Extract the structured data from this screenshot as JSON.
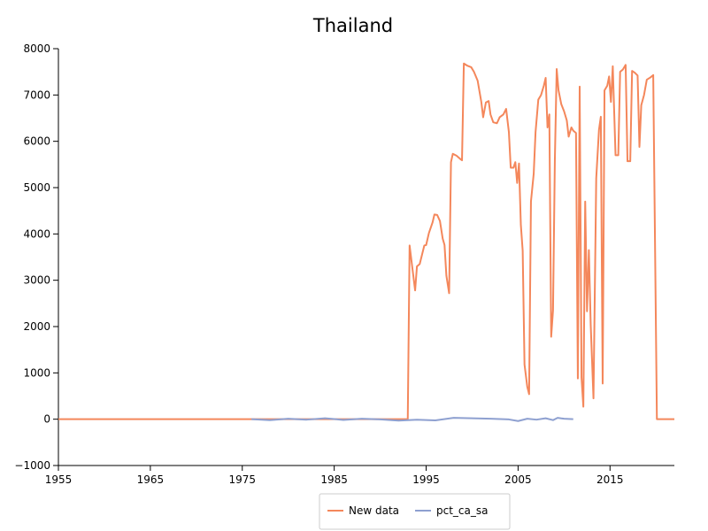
{
  "chart_data": {
    "type": "line",
    "title": "Thailand",
    "xlabel": "",
    "ylabel": "",
    "xlim": [
      1955,
      2022
    ],
    "ylim": [
      -1000,
      8000
    ],
    "x_ticks": [
      "1955",
      "1965",
      "1975",
      "1985",
      "1995",
      "2005",
      "2015"
    ],
    "y_ticks": [
      "−1000",
      "0",
      "1000",
      "2000",
      "3000",
      "4000",
      "5000",
      "6000",
      "7000",
      "8000"
    ],
    "grid": false,
    "legend_position": "bottom-center",
    "series": [
      {
        "name": "New data",
        "color": "#f4875b",
        "points": [
          [
            1955,
            0
          ],
          [
            1993,
            0
          ],
          [
            1993.2,
            3750
          ],
          [
            1993.8,
            2780
          ],
          [
            1994.0,
            3300
          ],
          [
            1994.3,
            3350
          ],
          [
            1994.8,
            3750
          ],
          [
            1995.0,
            3760
          ],
          [
            1995.3,
            4020
          ],
          [
            1995.7,
            4250
          ],
          [
            1995.9,
            4420
          ],
          [
            1996.2,
            4410
          ],
          [
            1996.5,
            4280
          ],
          [
            1996.8,
            3900
          ],
          [
            1997.0,
            3760
          ],
          [
            1997.2,
            3100
          ],
          [
            1997.5,
            2720
          ],
          [
            1997.7,
            5550
          ],
          [
            1997.9,
            5730
          ],
          [
            1998.3,
            5690
          ],
          [
            1998.7,
            5620
          ],
          [
            1998.9,
            5590
          ],
          [
            1999.1,
            7680
          ],
          [
            1999.5,
            7630
          ],
          [
            1999.9,
            7600
          ],
          [
            2000.2,
            7500
          ],
          [
            2000.6,
            7310
          ],
          [
            2001.0,
            6850
          ],
          [
            2001.2,
            6520
          ],
          [
            2001.5,
            6840
          ],
          [
            2001.8,
            6870
          ],
          [
            2002.0,
            6580
          ],
          [
            2002.3,
            6410
          ],
          [
            2002.7,
            6390
          ],
          [
            2003.0,
            6520
          ],
          [
            2003.4,
            6580
          ],
          [
            2003.7,
            6700
          ],
          [
            2004.0,
            6200
          ],
          [
            2004.2,
            5430
          ],
          [
            2004.5,
            5430
          ],
          [
            2004.7,
            5550
          ],
          [
            2004.9,
            5100
          ],
          [
            2005.1,
            5520
          ],
          [
            2005.3,
            4200
          ],
          [
            2005.5,
            3640
          ],
          [
            2005.7,
            1180
          ],
          [
            2006.0,
            700
          ],
          [
            2006.2,
            540
          ],
          [
            2006.4,
            4700
          ],
          [
            2006.7,
            5300
          ],
          [
            2006.9,
            6200
          ],
          [
            2007.2,
            6900
          ],
          [
            2007.5,
            7000
          ],
          [
            2007.8,
            7200
          ],
          [
            2008.0,
            7370
          ],
          [
            2008.2,
            6300
          ],
          [
            2008.4,
            6580
          ],
          [
            2008.6,
            1780
          ],
          [
            2008.8,
            2350
          ],
          [
            2009.0,
            5600
          ],
          [
            2009.2,
            7560
          ],
          [
            2009.4,
            7100
          ],
          [
            2009.7,
            6800
          ],
          [
            2010.0,
            6650
          ],
          [
            2010.3,
            6450
          ],
          [
            2010.5,
            6100
          ],
          [
            2010.8,
            6300
          ],
          [
            2011.0,
            6230
          ],
          [
            2011.3,
            6180
          ],
          [
            2011.5,
            880
          ],
          [
            2011.7,
            7180
          ],
          [
            2011.9,
            900
          ],
          [
            2012.1,
            270
          ],
          [
            2012.3,
            4700
          ],
          [
            2012.5,
            2330
          ],
          [
            2012.7,
            3650
          ],
          [
            2012.9,
            2040
          ],
          [
            2013.2,
            450
          ],
          [
            2013.5,
            5200
          ],
          [
            2013.8,
            6250
          ],
          [
            2014.0,
            6530
          ],
          [
            2014.2,
            770
          ],
          [
            2014.4,
            7100
          ],
          [
            2014.7,
            7200
          ],
          [
            2014.9,
            7400
          ],
          [
            2015.1,
            6850
          ],
          [
            2015.3,
            7620
          ],
          [
            2015.6,
            5700
          ],
          [
            2015.9,
            5700
          ],
          [
            2016.1,
            7500
          ],
          [
            2016.4,
            7550
          ],
          [
            2016.7,
            7650
          ],
          [
            2016.9,
            5570
          ],
          [
            2017.2,
            5570
          ],
          [
            2017.4,
            7520
          ],
          [
            2017.7,
            7480
          ],
          [
            2018.0,
            7420
          ],
          [
            2018.2,
            5880
          ],
          [
            2018.4,
            6780
          ],
          [
            2018.7,
            7000
          ],
          [
            2019.0,
            7330
          ],
          [
            2019.4,
            7380
          ],
          [
            2019.7,
            7430
          ],
          [
            2020.1,
            0
          ],
          [
            2022,
            0
          ]
        ]
      },
      {
        "name": "pct_ca_sa",
        "color": "#8ea0d0",
        "points": [
          [
            1976,
            0
          ],
          [
            1978,
            -20
          ],
          [
            1980,
            10
          ],
          [
            1982,
            -10
          ],
          [
            1984,
            20
          ],
          [
            1986,
            -15
          ],
          [
            1988,
            10
          ],
          [
            1990,
            -5
          ],
          [
            1992,
            -30
          ],
          [
            1994,
            -10
          ],
          [
            1996,
            -25
          ],
          [
            1998,
            30
          ],
          [
            2000,
            20
          ],
          [
            2002,
            10
          ],
          [
            2004,
            -5
          ],
          [
            2005,
            -40
          ],
          [
            2006,
            10
          ],
          [
            2007,
            -10
          ],
          [
            2008,
            20
          ],
          [
            2008.8,
            -20
          ],
          [
            2009.3,
            30
          ],
          [
            2010,
            10
          ],
          [
            2011,
            0
          ]
        ]
      }
    ]
  }
}
